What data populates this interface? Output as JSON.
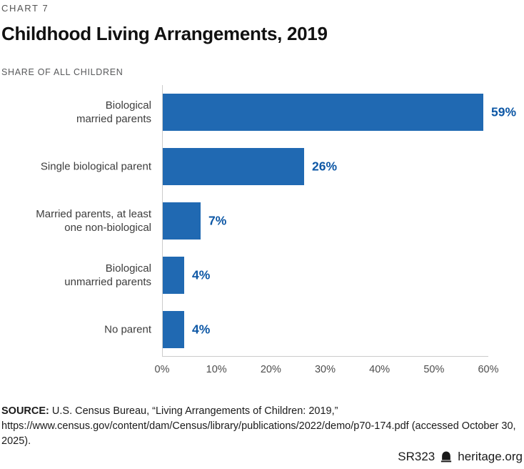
{
  "page": {
    "kicker": "CHART 7",
    "title": "Childhood Living Arrangements, 2019",
    "subtitle": "SHARE OF ALL CHILDREN"
  },
  "chart_data": {
    "type": "bar",
    "orientation": "horizontal",
    "title": "Childhood Living Arrangements, 2019",
    "subtitle": "SHARE OF ALL CHILDREN",
    "categories": [
      "Biological married parents",
      "Single biological parent",
      "Married parents, at least one non-biological",
      "Biological unmarried parents",
      "No parent"
    ],
    "label_lines": [
      [
        "Biological",
        "married parents"
      ],
      [
        "Single biological parent"
      ],
      [
        "Married parents, at least",
        "one non-biological"
      ],
      [
        "Biological",
        "unmarried parents"
      ],
      [
        "No parent"
      ]
    ],
    "values": [
      59,
      26,
      7,
      4,
      4
    ],
    "value_labels": [
      "59%",
      "26%",
      "7%",
      "4%",
      "4%"
    ],
    "unit": "%",
    "xlim": [
      0,
      60
    ],
    "x_ticks": [
      "0%",
      "10%",
      "20%",
      "30%",
      "40%",
      "50%",
      "60%"
    ],
    "grid": false,
    "legend": "none",
    "bar_color": "#2069b2",
    "value_label_color": "#0d57a5",
    "axis_line_color": "#cccccc"
  },
  "footer": {
    "source_label": "SOURCE:",
    "source_text": "U.S. Census Bureau, “Living Arrangements of Children: 2019,” https://www.census.gov/content/dam/Census/library/publications/2022/demo/p70-174.pdf (accessed October 30, 2025).",
    "report_id": "SR323",
    "site": "heritage.org"
  }
}
